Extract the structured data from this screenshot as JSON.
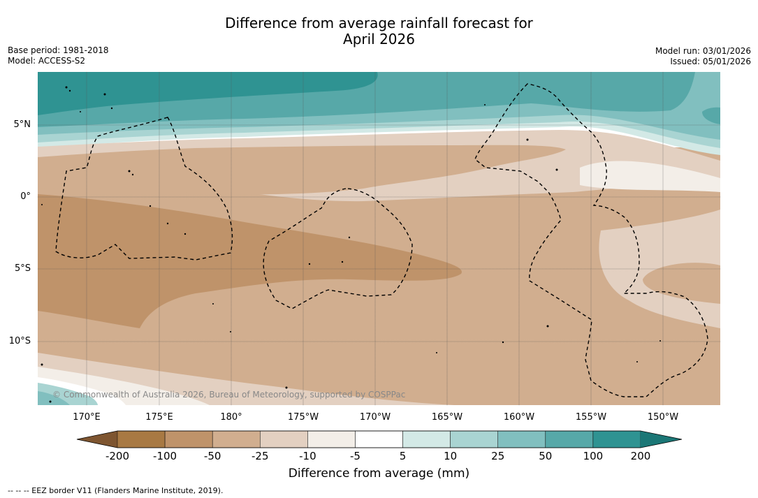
{
  "title": {
    "line1": "Difference from average rainfall forecast for",
    "line2": "April 2026"
  },
  "meta_left": {
    "base_period": "Base period: 1981-2018",
    "model": "Model: ACCESS-S2"
  },
  "meta_right": {
    "model_run": "Model run: 03/01/2026",
    "issued": "Issued: 05/01/2026"
  },
  "lat_labels": [
    "5°N",
    "0°",
    "5°S",
    "10°S"
  ],
  "lon_labels": [
    "170°E",
    "175°E",
    "180°",
    "175°W",
    "170°W",
    "165°W",
    "160°W",
    "155°W",
    "150°W"
  ],
  "attribution": "© Commonwealth of Australia 2026, Bureau of Meteorology, supported by COSPPac",
  "colorbar": {
    "ticks": [
      "-200",
      "-100",
      "-50",
      "-25",
      "-10",
      "-5",
      "5",
      "10",
      "25",
      "50",
      "100",
      "200"
    ],
    "colors": [
      "#7e5530",
      "#a87943",
      "#bf936a",
      "#d1ae8f",
      "#e3d0c1",
      "#f3eee8",
      "#ffffff",
      "#d3e9e6",
      "#a9d4d2",
      "#81bfbf",
      "#57a8a8",
      "#2f9392",
      "#1b7776"
    ],
    "title": "Difference from average (mm)"
  },
  "legend_footer": "--  --  -- EEZ border V11 (Flanders Marine Institute, 2019)."
}
